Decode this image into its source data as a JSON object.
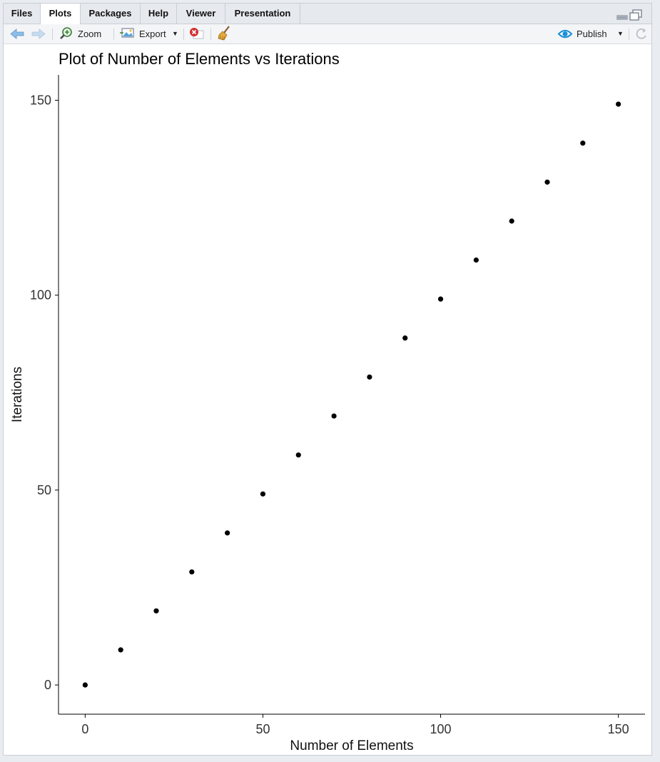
{
  "tabs": [
    {
      "label": "Files"
    },
    {
      "label": "Plots"
    },
    {
      "label": "Packages"
    },
    {
      "label": "Help"
    },
    {
      "label": "Viewer"
    },
    {
      "label": "Presentation"
    }
  ],
  "toolbar": {
    "zoom_label": "Zoom",
    "export_label": "Export",
    "publish_label": "Publish"
  },
  "colors": {
    "accent": "#1a8fd6",
    "remove": "#d32f2f",
    "points": "#000000"
  },
  "chart_data": {
    "type": "scatter",
    "title": "Plot of Number of Elements vs Iterations",
    "xlabel": "Number of Elements",
    "ylabel": "Iterations",
    "x": [
      0,
      10,
      20,
      30,
      40,
      50,
      60,
      70,
      80,
      90,
      100,
      110,
      120,
      130,
      140,
      150
    ],
    "y": [
      0,
      9,
      19,
      29,
      39,
      49,
      59,
      69,
      79,
      89,
      99,
      109,
      119,
      129,
      139,
      149
    ],
    "xlim": [
      -7.5,
      157.5
    ],
    "ylim": [
      -7.5,
      156.5
    ],
    "xticks": [
      0,
      50,
      100,
      150
    ],
    "yticks": [
      0,
      50,
      100,
      150
    ],
    "grid": false,
    "legend": "none"
  }
}
